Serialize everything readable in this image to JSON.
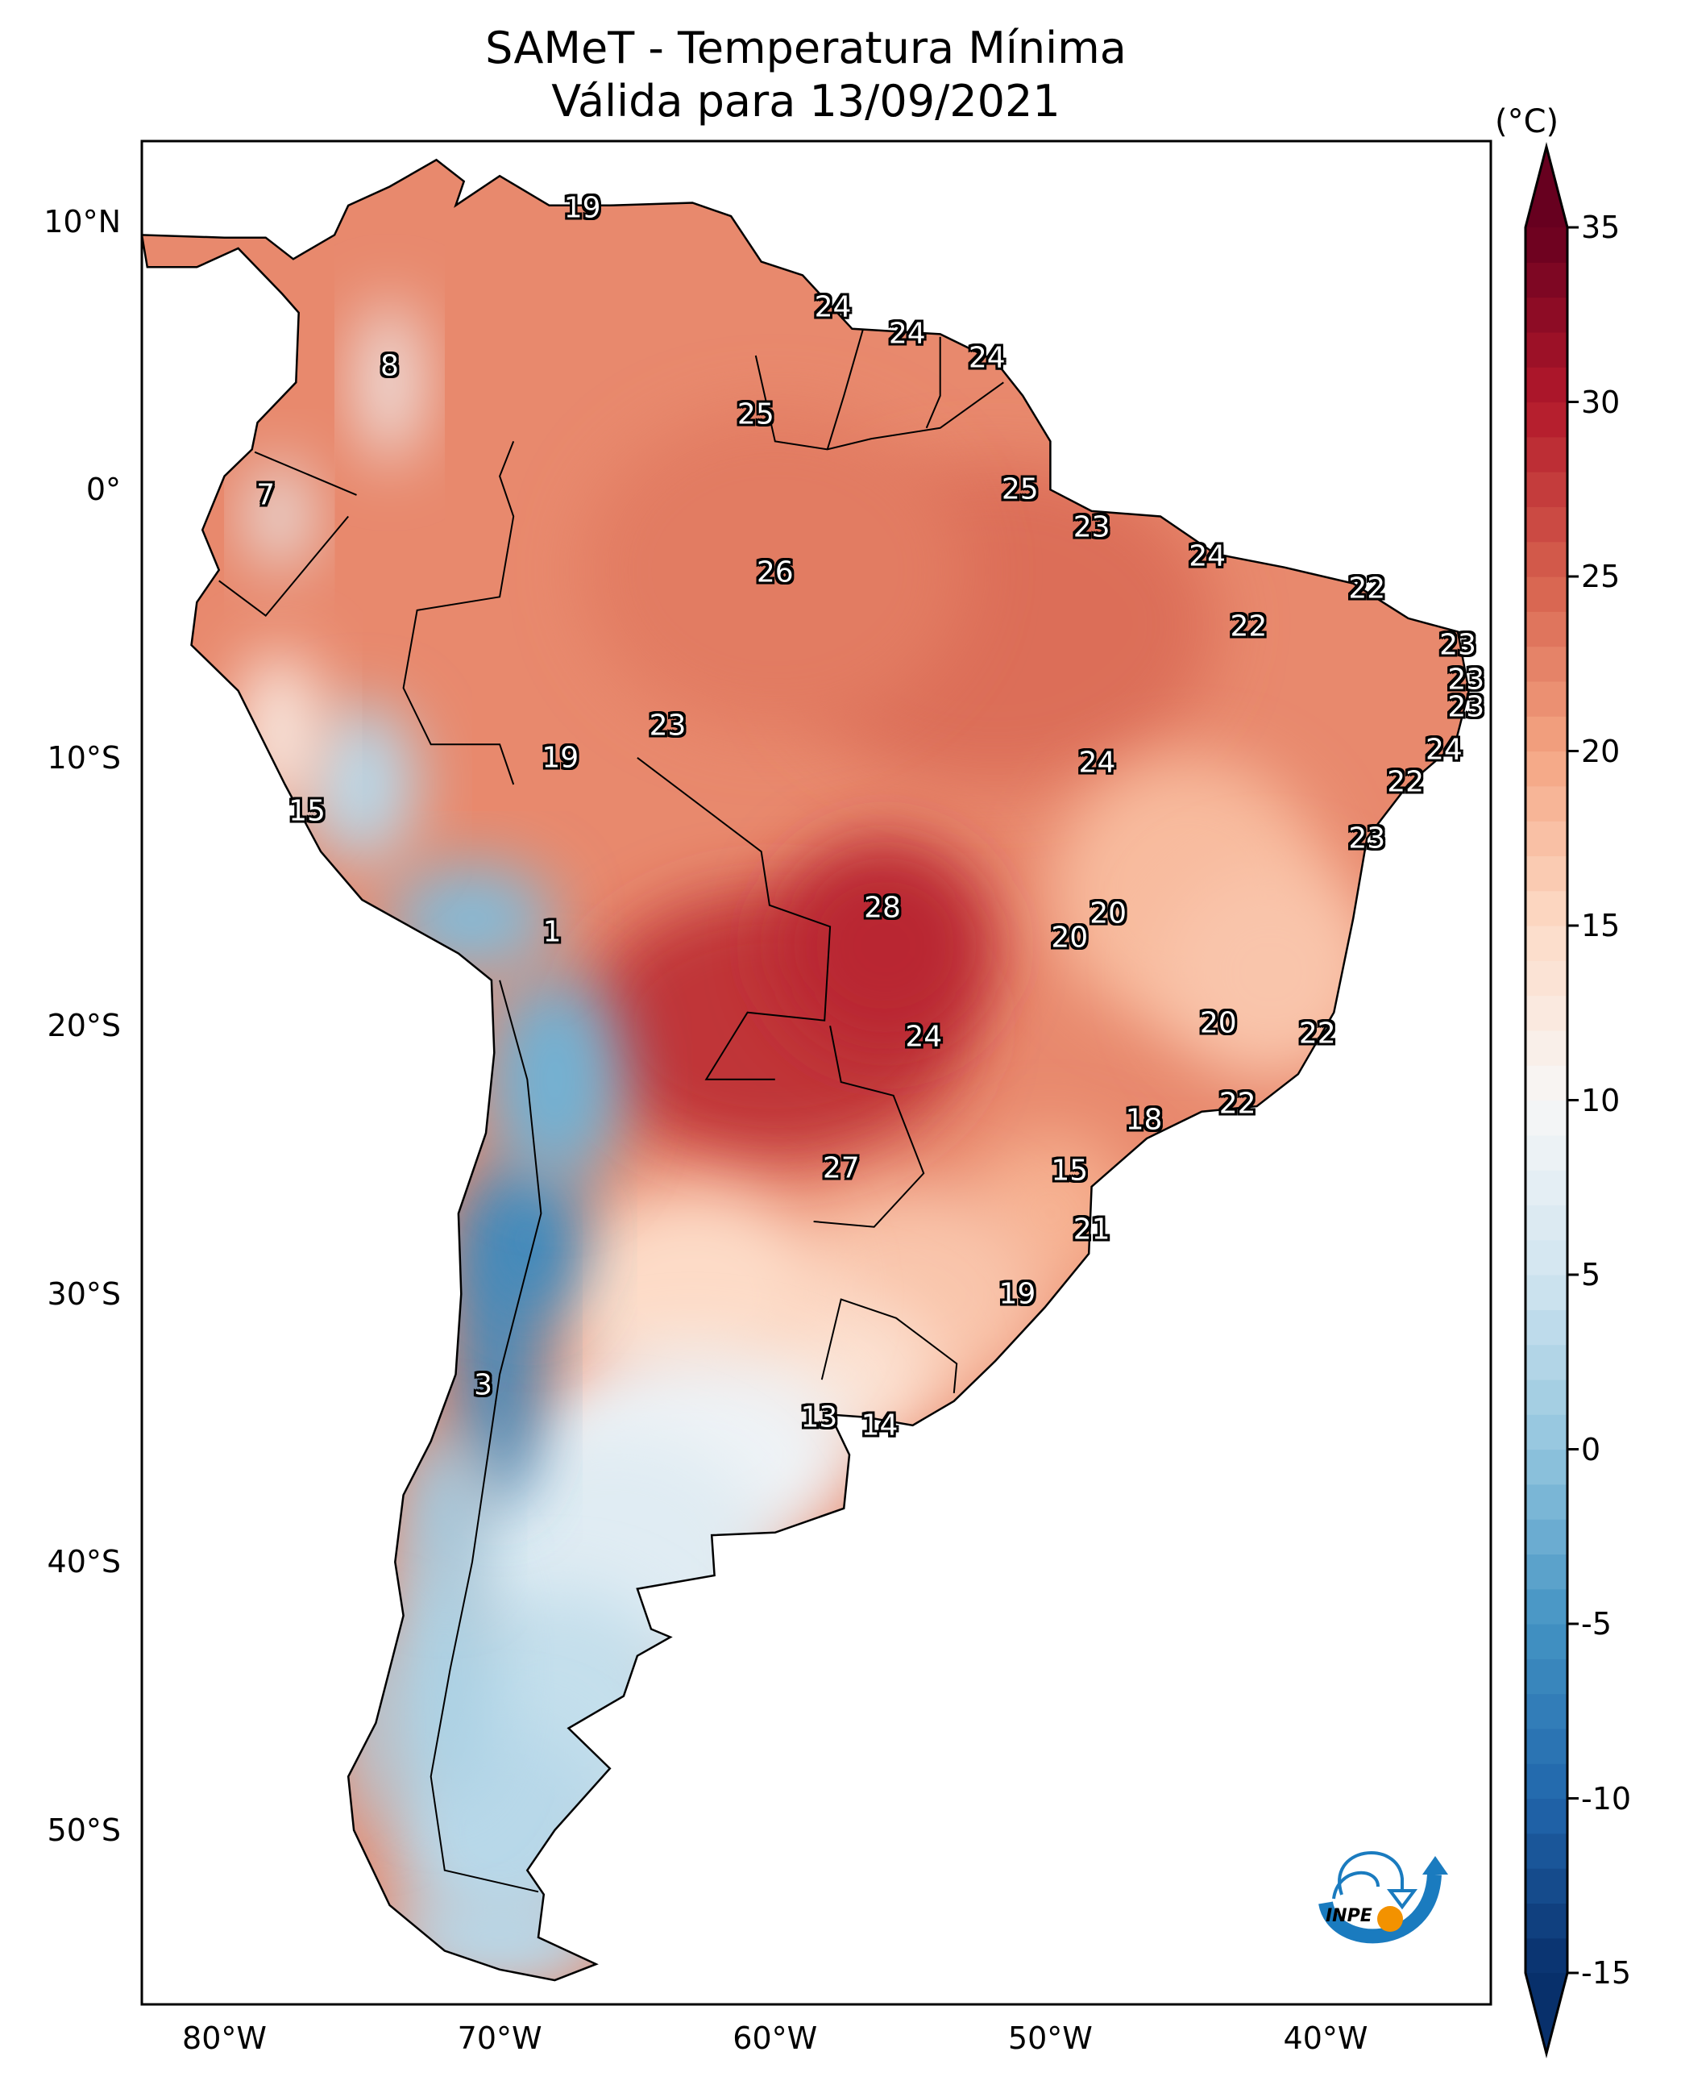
{
  "title": {
    "line1": "SAMeT - Temperatura Mínima",
    "line2": "Válida para 13/09/2021"
  },
  "logo": {
    "text": "INPE",
    "icon": "inpe-logo-icon",
    "colors": {
      "blue": "#1a7bbf",
      "orange": "#f39200"
    }
  },
  "chart_data": {
    "type": "heatmap",
    "title": "SAMeT - Temperatura Mínima",
    "subtitle": "Válida para 13/09/2021",
    "region": "South America",
    "variable": "Minimum temperature",
    "units": "(°C)",
    "xlabel": "",
    "ylabel": "",
    "lon_range": [
      -83,
      -34
    ],
    "lat_range": [
      -56.5,
      13
    ],
    "x_ticks": [
      {
        "value": -80,
        "label": "80°W"
      },
      {
        "value": -70,
        "label": "70°W"
      },
      {
        "value": -60,
        "label": "60°W"
      },
      {
        "value": -50,
        "label": "50°W"
      },
      {
        "value": -40,
        "label": "40°W"
      }
    ],
    "y_ticks": [
      {
        "value": 10,
        "label": "10°N"
      },
      {
        "value": 0,
        "label": "0°"
      },
      {
        "value": -10,
        "label": "10°S"
      },
      {
        "value": -20,
        "label": "20°S"
      },
      {
        "value": -30,
        "label": "30°S"
      },
      {
        "value": -40,
        "label": "40°S"
      },
      {
        "value": -50,
        "label": "50°S"
      }
    ],
    "colorbar": {
      "label": "(°C)",
      "range": [
        -15,
        35
      ],
      "extend": "both",
      "colormap": "RdBu_r",
      "ticks": [
        {
          "value": 35,
          "label": "35"
        },
        {
          "value": 30,
          "label": "30"
        },
        {
          "value": 25,
          "label": "25"
        },
        {
          "value": 20,
          "label": "20"
        },
        {
          "value": 15,
          "label": "15"
        },
        {
          "value": 10,
          "label": "10"
        },
        {
          "value": 5,
          "label": "5"
        },
        {
          "value": 0,
          "label": "0"
        },
        {
          "value": -5,
          "label": "-5"
        },
        {
          "value": -10,
          "label": "-10"
        },
        {
          "value": -15,
          "label": "-15"
        }
      ],
      "stops": [
        {
          "value": -15,
          "color": "#08306b"
        },
        {
          "value": -10,
          "color": "#2166ac"
        },
        {
          "value": -5,
          "color": "#4393c3"
        },
        {
          "value": 0,
          "color": "#92c5de"
        },
        {
          "value": 5,
          "color": "#d1e5f0"
        },
        {
          "value": 10,
          "color": "#f7f7f7"
        },
        {
          "value": 15,
          "color": "#fddbc7"
        },
        {
          "value": 20,
          "color": "#f4a582"
        },
        {
          "value": 25,
          "color": "#d6604d"
        },
        {
          "value": 30,
          "color": "#b2182b"
        },
        {
          "value": 35,
          "color": "#67001f"
        }
      ]
    },
    "station_labels": [
      {
        "lon": -67.0,
        "lat": 10.5,
        "value": "19"
      },
      {
        "lon": -74.0,
        "lat": 4.6,
        "value": "8"
      },
      {
        "lon": -78.5,
        "lat": -0.2,
        "value": "7"
      },
      {
        "lon": -57.9,
        "lat": 6.8,
        "value": "24"
      },
      {
        "lon": -55.2,
        "lat": 5.8,
        "value": "24"
      },
      {
        "lon": -52.3,
        "lat": 4.9,
        "value": "24"
      },
      {
        "lon": -60.7,
        "lat": 2.8,
        "value": "25"
      },
      {
        "lon": -51.1,
        "lat": 0.0,
        "value": "25"
      },
      {
        "lon": -48.5,
        "lat": -1.4,
        "value": "23"
      },
      {
        "lon": -44.3,
        "lat": -2.5,
        "value": "24"
      },
      {
        "lon": -60.0,
        "lat": -3.1,
        "value": "26"
      },
      {
        "lon": -38.5,
        "lat": -3.7,
        "value": "22"
      },
      {
        "lon": -42.8,
        "lat": -5.1,
        "value": "22"
      },
      {
        "lon": -35.2,
        "lat": -5.8,
        "value": "23"
      },
      {
        "lon": -34.9,
        "lat": -7.1,
        "value": "23"
      },
      {
        "lon": -34.9,
        "lat": -8.1,
        "value": "23"
      },
      {
        "lon": -35.7,
        "lat": -9.7,
        "value": "24"
      },
      {
        "lon": -37.1,
        "lat": -10.9,
        "value": "22"
      },
      {
        "lon": -38.5,
        "lat": -13.0,
        "value": "23"
      },
      {
        "lon": -63.9,
        "lat": -8.8,
        "value": "23"
      },
      {
        "lon": -67.8,
        "lat": -10.0,
        "value": "19"
      },
      {
        "lon": -48.3,
        "lat": -10.2,
        "value": "24"
      },
      {
        "lon": -77.0,
        "lat": -12.0,
        "value": "15"
      },
      {
        "lon": -56.1,
        "lat": -15.6,
        "value": "28"
      },
      {
        "lon": -47.9,
        "lat": -15.8,
        "value": "20"
      },
      {
        "lon": -49.3,
        "lat": -16.7,
        "value": "20"
      },
      {
        "lon": -68.1,
        "lat": -16.5,
        "value": "1"
      },
      {
        "lon": -43.9,
        "lat": -19.9,
        "value": "20"
      },
      {
        "lon": -40.3,
        "lat": -20.3,
        "value": "22"
      },
      {
        "lon": -54.6,
        "lat": -20.4,
        "value": "24"
      },
      {
        "lon": -43.2,
        "lat": -22.9,
        "value": "22"
      },
      {
        "lon": -46.6,
        "lat": -23.5,
        "value": "18"
      },
      {
        "lon": -57.6,
        "lat": -25.3,
        "value": "27"
      },
      {
        "lon": -49.3,
        "lat": -25.4,
        "value": "15"
      },
      {
        "lon": -48.5,
        "lat": -27.6,
        "value": "21"
      },
      {
        "lon": -51.2,
        "lat": -30.0,
        "value": "19"
      },
      {
        "lon": -70.6,
        "lat": -33.4,
        "value": "3"
      },
      {
        "lon": -58.4,
        "lat": -34.6,
        "value": "13"
      },
      {
        "lon": -56.2,
        "lat": -34.9,
        "value": "14"
      }
    ],
    "summary": {
      "warmest_label": "28",
      "coldest_label": "1",
      "warm_region": "Central-west Brazil / Paraguay / Mato Grosso",
      "cold_region": "Andes and Patagonia"
    }
  }
}
